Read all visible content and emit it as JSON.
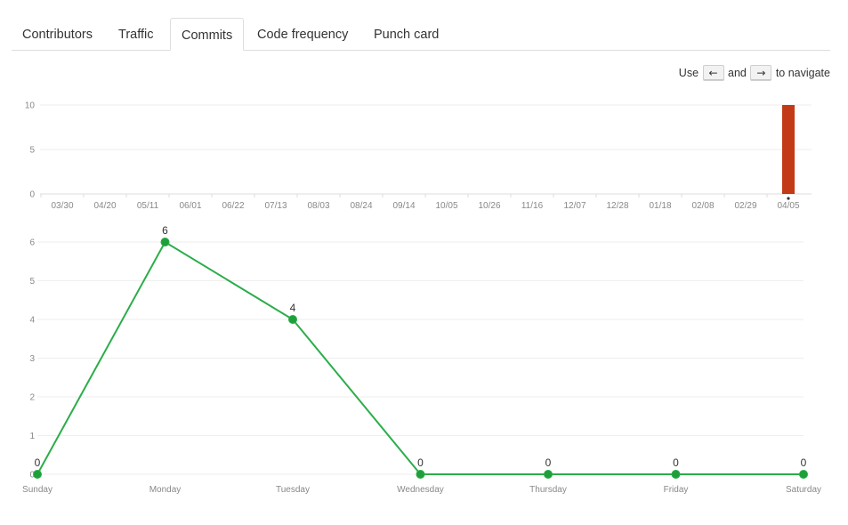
{
  "tabs": [
    {
      "label": "Contributors",
      "selected": false
    },
    {
      "label": "Traffic",
      "selected": false
    },
    {
      "label": "Commits",
      "selected": true
    },
    {
      "label": "Code frequency",
      "selected": false
    },
    {
      "label": "Punch card",
      "selected": false
    }
  ],
  "nav_hint": {
    "prefix": "Use",
    "left_key": "←",
    "middle": "and",
    "right_key": "→",
    "suffix": "to navigate"
  },
  "chart_data": [
    {
      "type": "bar",
      "categories": [
        "03/30",
        "04/20",
        "05/11",
        "06/01",
        "06/22",
        "07/13",
        "08/03",
        "08/24",
        "09/14",
        "10/05",
        "10/26",
        "11/16",
        "12/07",
        "12/28",
        "01/18",
        "02/08",
        "02/29",
        "04/05"
      ],
      "values": [
        0,
        0,
        0,
        0,
        0,
        0,
        0,
        0,
        0,
        0,
        0,
        0,
        0,
        0,
        0,
        0,
        0,
        10
      ],
      "yticks": [
        0,
        5,
        10
      ],
      "ylim": [
        0,
        10
      ],
      "color": "#c23b16",
      "grid": true
    },
    {
      "type": "line",
      "categories": [
        "Sunday",
        "Monday",
        "Tuesday",
        "Wednesday",
        "Thursday",
        "Friday",
        "Saturday"
      ],
      "values": [
        0,
        6,
        4,
        0,
        0,
        0,
        0
      ],
      "yticks": [
        0,
        1,
        2,
        3,
        4,
        5,
        6
      ],
      "ylim": [
        0,
        6
      ],
      "color": "#2bad4a",
      "marker_fill": "#1f9e3a",
      "data_labels": true,
      "grid": true
    }
  ]
}
